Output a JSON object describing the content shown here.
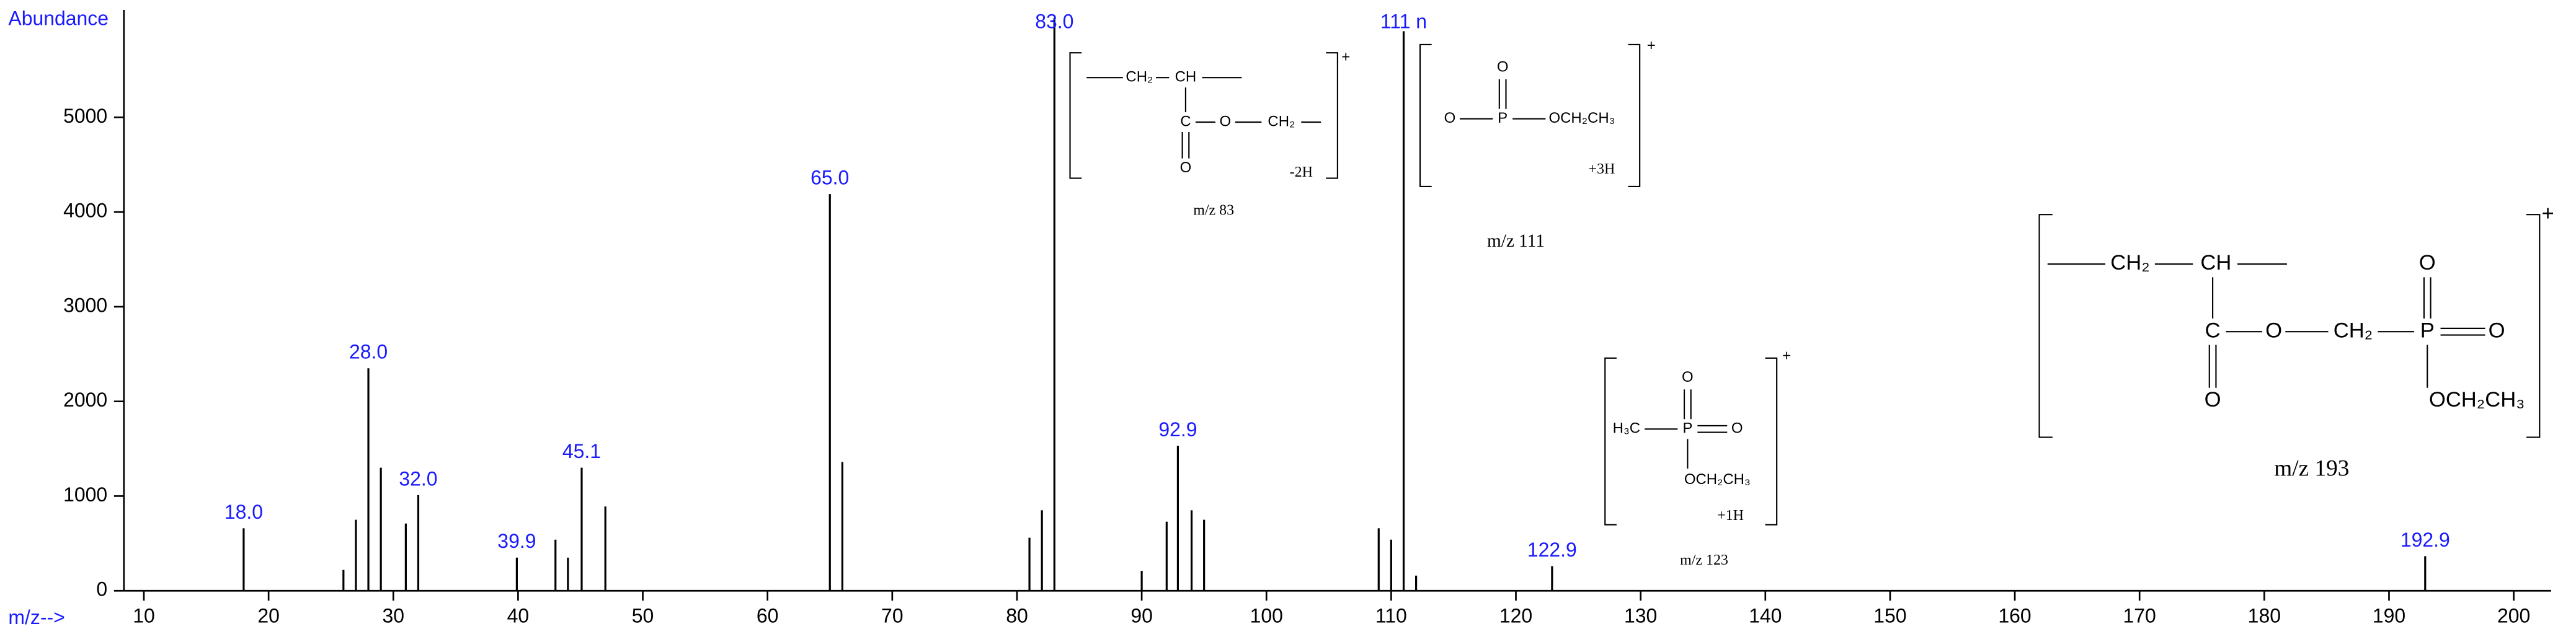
{
  "chart_data": {
    "type": "bar",
    "y_label": "Abundance",
    "x_label": "m/z-->",
    "x": [
      18,
      26,
      27,
      28,
      29,
      31,
      32,
      39.9,
      43,
      44,
      45.1,
      47,
      65,
      66,
      81,
      82,
      83,
      90,
      92,
      92.9,
      94,
      95,
      109,
      110,
      111,
      112,
      122.9,
      192.9
    ],
    "values": [
      660,
      220,
      750,
      2350,
      1300,
      710,
      1010,
      350,
      540,
      350,
      1300,
      890,
      4190,
      1360,
      560,
      850,
      6050,
      210,
      730,
      1530,
      850,
      750,
      660,
      540,
      5910,
      160,
      260,
      365
    ],
    "x_labels": [
      "18.0",
      null,
      null,
      "28.0",
      null,
      null,
      "32.0",
      "39.9",
      null,
      null,
      "45.1",
      null,
      "65.0",
      null,
      null,
      null,
      "83.0",
      null,
      null,
      "92.9",
      null,
      null,
      null,
      null,
      "111 n",
      null,
      "122.9",
      "192.9"
    ],
    "color": "#000000",
    "label_color": "#1a1aff",
    "xlim": [
      8.4,
      203
    ],
    "xticks": [
      10,
      20,
      30,
      40,
      50,
      60,
      70,
      80,
      90,
      100,
      110,
      120,
      130,
      140,
      150,
      160,
      170,
      180,
      190,
      200
    ],
    "ylim": [
      0,
      6100
    ],
    "yticks": [
      0,
      1000,
      2000,
      3000,
      4000,
      5000
    ],
    "structures": [
      {
        "atoms": [
          "CH₂",
          "CH",
          "C",
          "O",
          "CH₂",
          "O"
        ],
        "charge": "+",
        "note": "-2H",
        "caption": "m/z 83"
      },
      {
        "atoms": [
          "O",
          "P",
          "O",
          "OCH₂CH₃"
        ],
        "charge": "+",
        "note": "+3H",
        "caption": "m/z 111"
      },
      {
        "atoms": [
          "H₃C",
          "P",
          "O",
          "O",
          "OCH₂CH₃"
        ],
        "charge": "+",
        "note": "+1H",
        "caption": "m/z 123"
      },
      {
        "atoms": [
          "CH₂",
          "CH",
          "C",
          "O",
          "O",
          "CH₂",
          "P",
          "O",
          "O",
          "OCH₂CH₃"
        ],
        "charge": "+",
        "caption": "m/z 193"
      }
    ]
  }
}
